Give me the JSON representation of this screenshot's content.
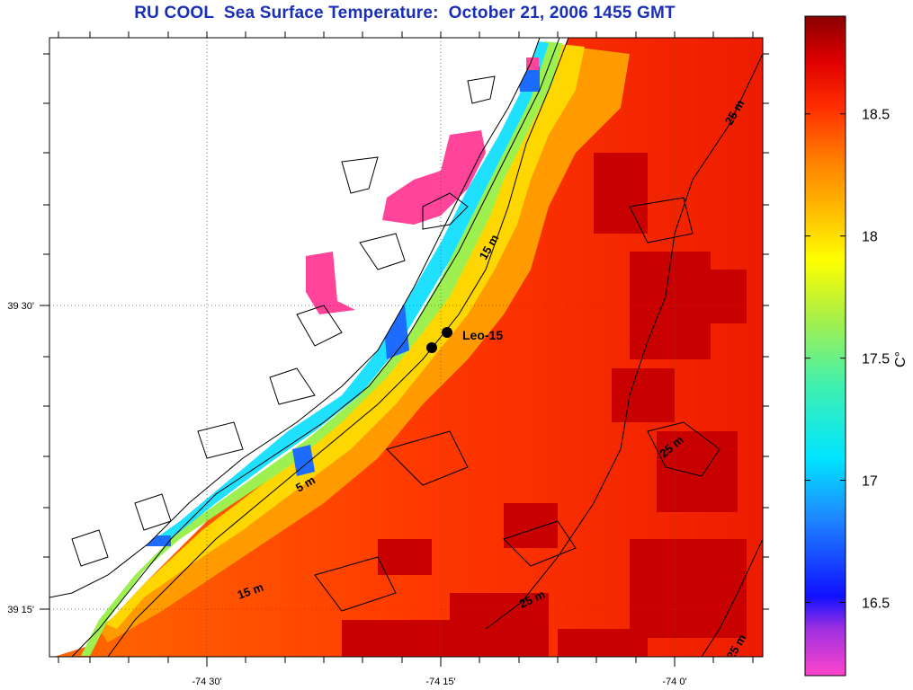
{
  "title": "RU COOL  Sea Surface Temperature:  October 21, 2006 1455 GMT",
  "map": {
    "lon_ticks": [
      "-74 30'",
      "-74 15'",
      "-74 0'"
    ],
    "lat_ticks": [
      "39 30'",
      "39 15'"
    ],
    "station": {
      "name": "Leo-15"
    },
    "depth_contour_labels": [
      "5 m",
      "15 m",
      "15 m",
      "25 m",
      "25 m",
      "25 m",
      "25 m"
    ]
  },
  "colorbar": {
    "unit": "C°",
    "ticks": [
      "18.5",
      "18",
      "17.5",
      "17",
      "16.5"
    ],
    "tick_values": [
      18.5,
      18.0,
      17.5,
      17.0,
      16.5
    ],
    "range": [
      16.2,
      18.9
    ],
    "colors": [
      "#ff44cc",
      "#7a3bd6",
      "#1010ff",
      "#1e88ff",
      "#00e5ff",
      "#40f0b0",
      "#b0f040",
      "#ffff00",
      "#ffc000",
      "#ff8000",
      "#ff3000",
      "#e00000",
      "#8b0000"
    ]
  }
}
